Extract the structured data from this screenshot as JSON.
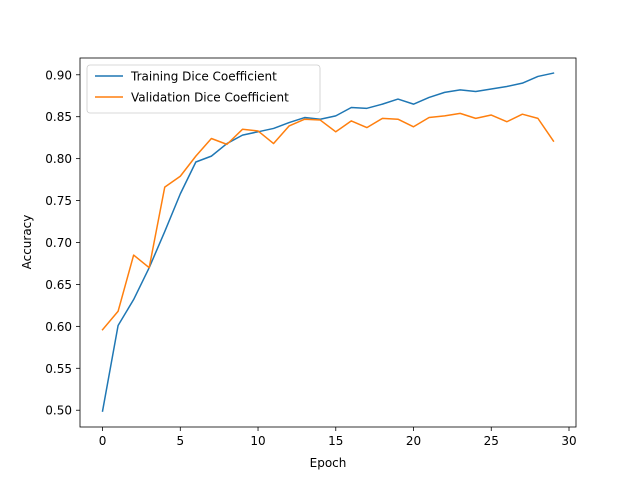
{
  "chart_data": {
    "type": "line",
    "xlabel": "Epoch",
    "ylabel": "Accuracy",
    "xlim": [
      -1.45,
      30.45
    ],
    "ylim": [
      0.48,
      0.92
    ],
    "xticks": [
      0,
      5,
      10,
      15,
      20,
      25,
      30
    ],
    "yticks": [
      0.5,
      0.55,
      0.6,
      0.65,
      0.7,
      0.75,
      0.8,
      0.85,
      0.9
    ],
    "grid": false,
    "legend_position": "top-left",
    "x": [
      0,
      1,
      2,
      3,
      4,
      5,
      6,
      7,
      8,
      9,
      10,
      11,
      12,
      13,
      14,
      15,
      16,
      17,
      18,
      19,
      20,
      21,
      22,
      23,
      24,
      25,
      26,
      27,
      28,
      29
    ],
    "series": [
      {
        "name": "Training Dice Coefficient",
        "color": "#1f77b4",
        "values": [
          0.499,
          0.601,
          0.632,
          0.67,
          0.713,
          0.758,
          0.796,
          0.803,
          0.818,
          0.828,
          0.832,
          0.836,
          0.843,
          0.849,
          0.847,
          0.851,
          0.861,
          0.86,
          0.865,
          0.871,
          0.865,
          0.873,
          0.879,
          0.882,
          0.88,
          0.883,
          0.886,
          0.89,
          0.898,
          0.902
        ]
      },
      {
        "name": "Validation Dice Coefficient",
        "color": "#ff7f0e",
        "values": [
          0.596,
          0.618,
          0.685,
          0.67,
          0.766,
          0.779,
          0.803,
          0.824,
          0.817,
          0.835,
          0.833,
          0.818,
          0.839,
          0.847,
          0.846,
          0.832,
          0.845,
          0.837,
          0.848,
          0.847,
          0.838,
          0.849,
          0.851,
          0.854,
          0.848,
          0.852,
          0.844,
          0.853,
          0.848,
          0.821
        ]
      }
    ]
  }
}
